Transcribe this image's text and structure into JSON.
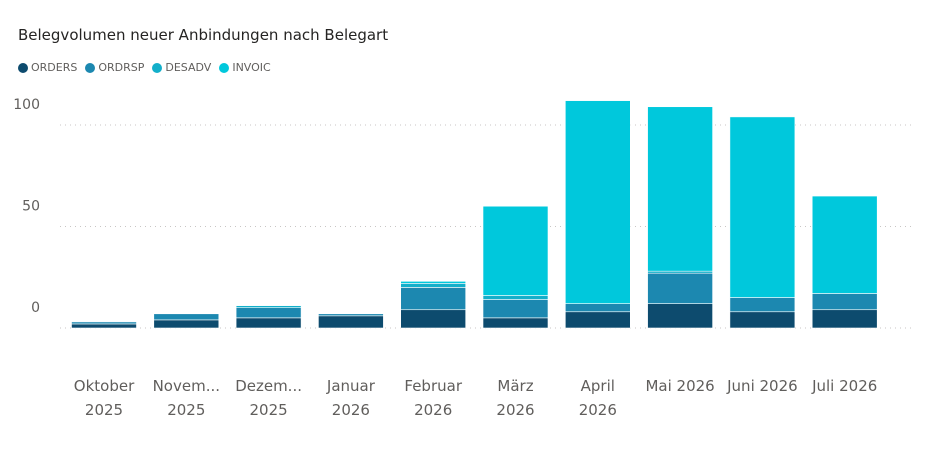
{
  "chart_data": {
    "type": "bar",
    "stacked": true,
    "title": "Belegvolumen neuer Anbindungen nach Belegart",
    "legend_position": "top-left",
    "grid": true,
    "categories": [
      [
        "Oktober",
        "2025"
      ],
      [
        "Novem...",
        "2025"
      ],
      [
        "Dezem...",
        "2025"
      ],
      [
        "Januar",
        "2026"
      ],
      [
        "Februar",
        "2026"
      ],
      [
        "März",
        "2026"
      ],
      [
        "April",
        "2026"
      ],
      [
        "Mai 2026"
      ],
      [
        "Juni 2026"
      ],
      [
        "Juli 2026"
      ]
    ],
    "series": [
      {
        "name": "ORDERS",
        "color": "#0d4b6e",
        "values": [
          2,
          4,
          5,
          6,
          9,
          5,
          8,
          12,
          8,
          9
        ]
      },
      {
        "name": "ORDRSP",
        "color": "#1c88b0",
        "values": [
          1,
          3,
          5,
          1,
          11,
          9,
          4,
          15,
          7,
          8
        ]
      },
      {
        "name": "DESADV",
        "color": "#13afca",
        "values": [
          0,
          0,
          1,
          0,
          2,
          2,
          0,
          1,
          0,
          0
        ]
      },
      {
        "name": "INVOIC",
        "color": "#00c8dc",
        "values": [
          0,
          0,
          0,
          0,
          1,
          44,
          100,
          81,
          89,
          48
        ]
      }
    ],
    "yticks": [
      0,
      50,
      100
    ],
    "ylim": [
      0,
      115
    ]
  }
}
